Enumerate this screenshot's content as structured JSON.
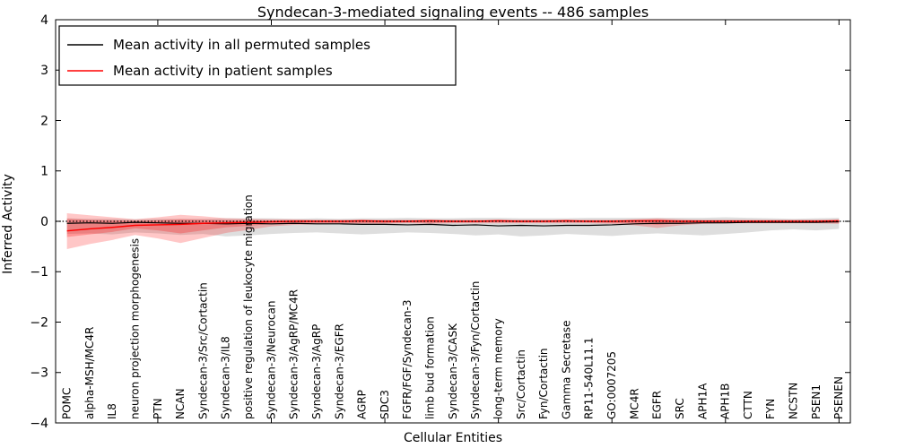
{
  "chart_data": {
    "type": "line",
    "title": "Syndecan-3-mediated signaling events -- 486 samples",
    "xlabel": "Cellular Entities",
    "ylabel": "Inferred Activity",
    "ylim": [
      -4,
      4
    ],
    "yticks": [
      -4,
      -3,
      -2,
      -1,
      0,
      1,
      2,
      3,
      4
    ],
    "x_major_tick_every": 5,
    "grid": false,
    "legend_position": "upper-left",
    "zero_line": {
      "y": 0,
      "style": "dotted",
      "color": "#000000"
    },
    "categories": [
      "POMC",
      "alpha-MSH/MC4R",
      "IL8",
      "neuron projection morphogenesis",
      "PTN",
      "NCAN",
      "Syndecan-3/Src/Cortactin",
      "Syndecan-3/IL8",
      "positive regulation of leukocyte migration",
      "Syndecan-3/Neurocan",
      "Syndecan-3/AgRP/MC4R",
      "Syndecan-3/AgRP",
      "Syndecan-3/EGFR",
      "AGRP",
      "SDC3",
      "FGFR/FGF/Syndecan-3",
      "limb bud formation",
      "Syndecan-3/CASK",
      "Syndecan-3/Fyn/Cortactin",
      "long-term memory",
      "Src/Cortactin",
      "Fyn/Cortactin",
      "Gamma Secretase",
      "RP11-540L11.1",
      "GO:0007205",
      "MC4R",
      "EGFR",
      "SRC",
      "APH1A",
      "APH1B",
      "CTTN",
      "FYN",
      "NCSTN",
      "PSEN1",
      "PSENEN"
    ],
    "series": [
      {
        "name": "Mean activity in all permuted samples",
        "color": "#000000",
        "values": [
          -0.04,
          -0.03,
          -0.04,
          -0.02,
          -0.03,
          -0.04,
          -0.04,
          -0.05,
          -0.04,
          -0.05,
          -0.04,
          -0.05,
          -0.05,
          -0.06,
          -0.06,
          -0.07,
          -0.06,
          -0.08,
          -0.07,
          -0.09,
          -0.08,
          -0.09,
          -0.08,
          -0.08,
          -0.07,
          -0.05,
          -0.04,
          -0.04,
          -0.03,
          -0.03,
          -0.02,
          -0.02,
          -0.02,
          -0.02,
          -0.01
        ]
      },
      {
        "name": "Mean activity in patient samples",
        "color": "#ff0000",
        "values": [
          -0.19,
          -0.15,
          -0.12,
          -0.08,
          -0.07,
          -0.06,
          -0.04,
          -0.03,
          -0.02,
          -0.01,
          0.0,
          0.0,
          0.0,
          0.01,
          0.0,
          0.0,
          0.01,
          0.0,
          0.0,
          0.01,
          0.0,
          0.0,
          0.01,
          0.0,
          0.0,
          0.01,
          0.01,
          0.0,
          0.0,
          0.0,
          0.0,
          0.0,
          0.0,
          0.0,
          0.01
        ]
      }
    ],
    "bands": [
      {
        "name": "permuted-samples-range",
        "color": "rgba(0,0,0,0.13)",
        "top": [
          0.06,
          0.05,
          0.05,
          0.04,
          0.05,
          0.05,
          0.05,
          0.06,
          0.06,
          0.06,
          0.05,
          0.06,
          0.05,
          0.06,
          0.06,
          0.07,
          0.06,
          0.06,
          0.07,
          0.07,
          0.06,
          0.06,
          0.06,
          0.07,
          0.07,
          0.07,
          0.07,
          0.07,
          0.07,
          0.08,
          0.07,
          0.06,
          0.05,
          0.06,
          0.07
        ],
        "bottom": [
          -0.25,
          -0.24,
          -0.26,
          -0.22,
          -0.24,
          -0.27,
          -0.25,
          -0.3,
          -0.28,
          -0.25,
          -0.23,
          -0.22,
          -0.24,
          -0.26,
          -0.24,
          -0.22,
          -0.23,
          -0.25,
          -0.28,
          -0.26,
          -0.3,
          -0.28,
          -0.25,
          -0.27,
          -0.29,
          -0.26,
          -0.24,
          -0.26,
          -0.28,
          -0.25,
          -0.22,
          -0.18,
          -0.16,
          -0.18,
          -0.15
        ]
      },
      {
        "name": "patient-samples-range-outer",
        "color": "rgba(255,0,0,0.22)",
        "top": [
          0.16,
          0.12,
          0.08,
          0.04,
          0.08,
          0.13,
          0.1,
          0.06,
          0.05,
          0.04,
          0.04,
          0.03,
          0.03,
          0.03,
          0.03,
          0.03,
          0.03,
          0.03,
          0.03,
          0.03,
          0.03,
          0.03,
          0.03,
          0.03,
          0.03,
          0.04,
          0.06,
          0.04,
          0.03,
          0.03,
          0.03,
          0.03,
          0.03,
          0.03,
          0.04
        ],
        "bottom": [
          -0.55,
          -0.45,
          -0.37,
          -0.27,
          -0.34,
          -0.43,
          -0.33,
          -0.23,
          -0.17,
          -0.1,
          -0.07,
          -0.06,
          -0.05,
          -0.05,
          -0.05,
          -0.04,
          -0.05,
          -0.04,
          -0.04,
          -0.04,
          -0.04,
          -0.04,
          -0.04,
          -0.04,
          -0.05,
          -0.08,
          -0.13,
          -0.08,
          -0.05,
          -0.04,
          -0.04,
          -0.04,
          -0.04,
          -0.04,
          -0.05
        ],
        "note": "red shaded confidence band, widest at left edge, small bulge near EGFR"
      },
      {
        "name": "patient-samples-range-inner",
        "color": "rgba(255,0,0,0.25)",
        "top": [
          0.05,
          0.03,
          0.02,
          0.01,
          0.02,
          0.04,
          0.03,
          0.02,
          0.02,
          0.02,
          0.02,
          0.02,
          0.02,
          0.02,
          0.02,
          0.02,
          0.02,
          0.02,
          0.02,
          0.02,
          0.02,
          0.02,
          0.02,
          0.02,
          0.02,
          0.02,
          0.03,
          0.02,
          0.02,
          0.02,
          0.02,
          0.02,
          0.02,
          0.02,
          0.02
        ],
        "bottom": [
          -0.31,
          -0.26,
          -0.21,
          -0.14,
          -0.18,
          -0.24,
          -0.18,
          -0.12,
          -0.09,
          -0.05,
          -0.03,
          -0.03,
          -0.03,
          -0.03,
          -0.03,
          -0.02,
          -0.03,
          -0.02,
          -0.02,
          -0.02,
          -0.02,
          -0.02,
          -0.02,
          -0.02,
          -0.03,
          -0.04,
          -0.07,
          -0.04,
          -0.03,
          -0.02,
          -0.02,
          -0.02,
          -0.02,
          -0.02,
          -0.03
        ]
      }
    ]
  }
}
